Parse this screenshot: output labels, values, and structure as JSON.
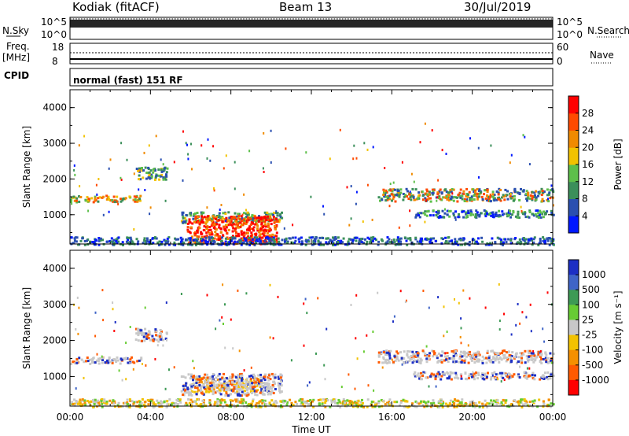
{
  "header": {
    "title": "Kodiak (fitACF)",
    "beam": "Beam 13",
    "date": "30/Jul/2019"
  },
  "side_labels": {
    "nsky": "N.Sky",
    "nsearch": "N.Search",
    "freq": "Freq.",
    "freq_unit": "[MHz]",
    "nave": "Nave",
    "cpid": "CPID",
    "cpid_value": "normal (fast) 151 RF"
  },
  "strip_ticks": {
    "noise_top": "10^5",
    "noise_bottom": "10^0",
    "freq_left_top": "18",
    "freq_left_bottom": "8",
    "nave_right_top": "60",
    "nave_right_bottom": "0"
  },
  "chart_data": [
    {
      "type": "heatmap",
      "name": "power",
      "ylabel": "Slant Range [km]",
      "ylim": [
        180,
        4500
      ],
      "y_ticks": [
        "1000",
        "2000",
        "3000",
        "4000"
      ],
      "x_ticks": [
        "00:00",
        "04:00",
        "08:00",
        "12:00",
        "16:00",
        "20:00",
        "00:00"
      ],
      "xlim_hours": [
        0,
        24
      ],
      "colorbar": {
        "label": "Power [dB]",
        "ticks": [
          "4",
          "8",
          "12",
          "16",
          "20",
          "24",
          "28"
        ],
        "colors": [
          "#0018ff",
          "#2a4fb0",
          "#3b8f5a",
          "#5dbf4a",
          "#f2c200",
          "#f08a00",
          "#ff4a00",
          "#ff0000"
        ]
      },
      "features": [
        {
          "label": "band",
          "x": [
            0.0,
            3.6
          ],
          "y": [
            1380,
            1560
          ],
          "level": "green-yellow"
        },
        {
          "label": "band",
          "x": [
            3.2,
            4.8
          ],
          "y": [
            2000,
            2350
          ],
          "level": "green"
        },
        {
          "label": "band",
          "x": [
            5.5,
            10.5
          ],
          "y": [
            800,
            1100
          ],
          "level": "green"
        },
        {
          "label": "enhancement",
          "x": [
            5.8,
            10.3
          ],
          "y": [
            200,
            1000
          ],
          "level": "red"
        },
        {
          "label": "band",
          "x": [
            15.3,
            24.0
          ],
          "y": [
            1400,
            1750
          ],
          "level": "green-orange"
        },
        {
          "label": "band",
          "x": [
            17.0,
            24.0
          ],
          "y": [
            950,
            1150
          ],
          "level": "blue-green"
        },
        {
          "label": "ground scatter",
          "x": [
            0.0,
            24.0
          ],
          "y": [
            180,
            400
          ],
          "level": "blue"
        }
      ]
    },
    {
      "type": "heatmap",
      "name": "velocity",
      "ylabel": "Slant Range [km]",
      "ylim": [
        180,
        4500
      ],
      "y_ticks": [
        "1000",
        "2000",
        "3000",
        "4000"
      ],
      "x_ticks": [
        "00:00",
        "04:00",
        "08:00",
        "12:00",
        "16:00",
        "20:00",
        "00:00"
      ],
      "xlabel": "Time UT",
      "xlim_hours": [
        0,
        24
      ],
      "colorbar": {
        "label": "Velocity [m s⁻¹]",
        "ticks": [
          "1000",
          "500",
          "100",
          "25",
          "-25",
          "-100",
          "-500",
          "-1000"
        ],
        "colors": [
          "#1c2fc4",
          "#3f64c7",
          "#3d9a55",
          "#67cc33",
          "#c8c8c8",
          "#f2c200",
          "#f59000",
          "#ff5a00",
          "#ff0000"
        ]
      },
      "features": [
        {
          "label": "band",
          "x": [
            0.0,
            3.6
          ],
          "y": [
            1380,
            1560
          ],
          "level": "gray"
        },
        {
          "label": "band",
          "x": [
            3.2,
            4.8
          ],
          "y": [
            2000,
            2350
          ],
          "level": "gray"
        },
        {
          "label": "enhancement",
          "x": [
            6.0,
            9.5
          ],
          "y": [
            600,
            1000
          ],
          "level": "yellow"
        },
        {
          "label": "band",
          "x": [
            5.5,
            10.5
          ],
          "y": [
            500,
            1100
          ],
          "level": "gray"
        },
        {
          "label": "band",
          "x": [
            15.3,
            24.0
          ],
          "y": [
            1400,
            1750
          ],
          "level": "gray"
        },
        {
          "label": "band",
          "x": [
            17.0,
            24.0
          ],
          "y": [
            950,
            1150
          ],
          "level": "gray"
        },
        {
          "label": "ground scatter",
          "x": [
            0.0,
            24.0
          ],
          "y": [
            180,
            400
          ],
          "level": "yellow-green"
        }
      ]
    }
  ]
}
